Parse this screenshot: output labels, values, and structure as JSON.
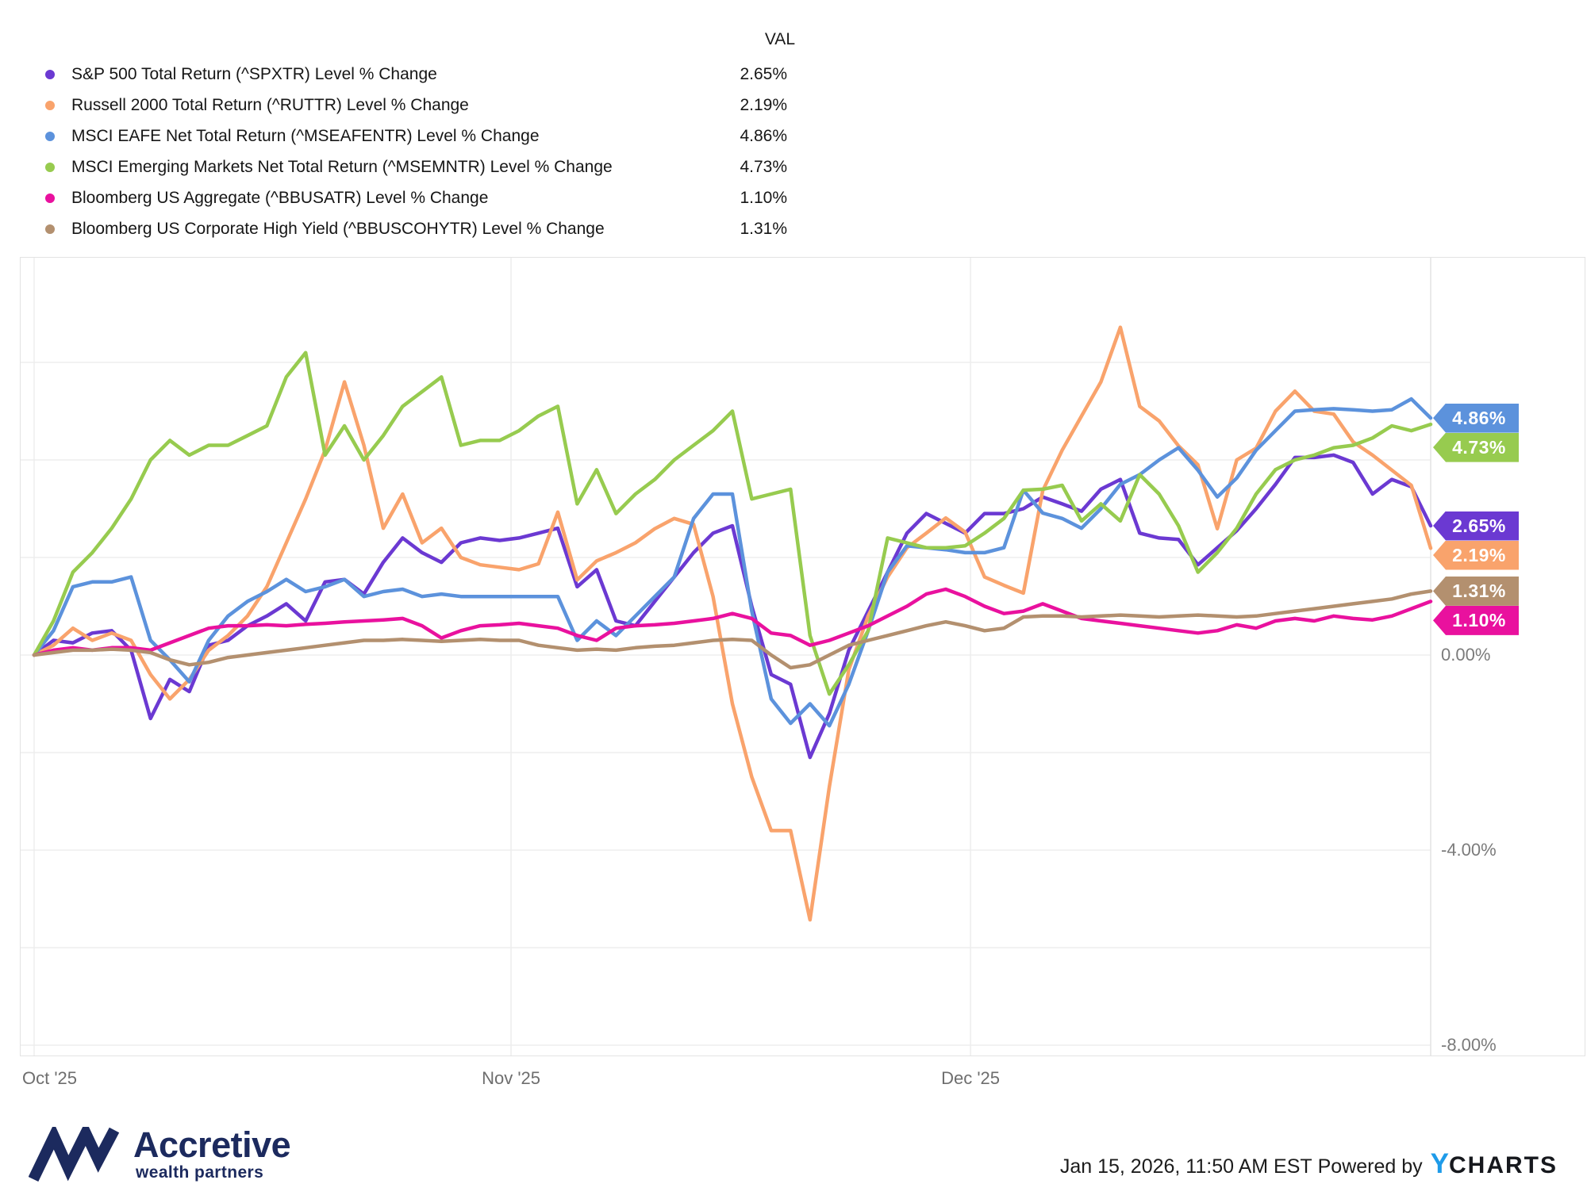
{
  "legend": {
    "val_header": "VAL",
    "items": [
      {
        "label": "S&P 500 Total Return (^SPXTR) Level % Change",
        "val": "2.65%",
        "color": "#6B39D2"
      },
      {
        "label": "Russell 2000 Total Return (^RUTTR) Level % Change",
        "val": "2.19%",
        "color": "#F9A36C"
      },
      {
        "label": "MSCI EAFE Net Total Return (^MSEAFENTR) Level % Change",
        "val": "4.86%",
        "color": "#5C92DC"
      },
      {
        "label": "MSCI Emerging Markets Net Total Return (^MSEMNTR) Level % Change",
        "val": "4.73%",
        "color": "#97CB4F"
      },
      {
        "label": "Bloomberg US Aggregate (^BBUSATR) Level % Change",
        "val": "1.10%",
        "color": "#E9119E"
      },
      {
        "label": "Bloomberg US Corporate High Yield (^BBUSCOHYTR) Level % Change",
        "val": "1.31%",
        "color": "#B3906F"
      }
    ]
  },
  "chart_data": {
    "type": "line",
    "title": "",
    "xlabel": "",
    "ylabel": "Level % Change",
    "x_range_dates": [
      "Oct 1 '25",
      "Jan 14 '26"
    ],
    "ylim": [
      -8.2,
      8.2
    ],
    "grid": true,
    "y_axis": {
      "gridline_values": [
        6,
        4,
        2,
        0,
        -2,
        -4,
        -6,
        -8
      ],
      "labels": [
        {
          "text": "0.00%",
          "value": 0
        },
        {
          "text": "-4.00%",
          "value": -4
        },
        {
          "text": "-8.00%",
          "value": -8
        }
      ]
    },
    "x_axis": {
      "ticks": [
        {
          "label": "Oct '25",
          "frac": 0.0,
          "align": "left"
        },
        {
          "label": "Nov '25",
          "frac": 0.3415,
          "align": "center"
        },
        {
          "label": "Dec '25",
          "frac": 0.6705,
          "align": "center"
        }
      ]
    },
    "series": [
      {
        "key": "spxtr",
        "name": "S&P 500 Total Return (^SPXTR) Level % Change",
        "ticker": "^SPXTR",
        "color": "#6B39D2",
        "final": 2.65,
        "tag": "2.65%",
        "values": [
          0,
          0.3,
          0.25,
          0.45,
          0.5,
          0.1,
          -1.3,
          -0.5,
          -0.75,
          0.2,
          0.3,
          0.6,
          0.8,
          1.05,
          0.7,
          1.5,
          1.55,
          1.25,
          1.9,
          2.4,
          2.1,
          1.9,
          2.3,
          2.4,
          2.35,
          2.4,
          2.5,
          2.6,
          1.4,
          1.75,
          0.7,
          0.6,
          1.1,
          1.6,
          2.1,
          2.5,
          2.65,
          1.0,
          -0.4,
          -0.6,
          -2.1,
          -1.2,
          0.1,
          0.9,
          1.7,
          2.5,
          2.9,
          2.7,
          2.5,
          2.9,
          2.9,
          3.0,
          3.24,
          3.1,
          2.95,
          3.4,
          3.6,
          2.5,
          2.4,
          2.37,
          1.85,
          2.2,
          2.55,
          3.0,
          3.5,
          4.05,
          4.05,
          4.1,
          3.95,
          3.3,
          3.6,
          3.45,
          2.65
        ]
      },
      {
        "key": "ruttr",
        "name": "Russell 2000 Total Return (^RUTTR) Level % Change",
        "ticker": "^RUTTR",
        "color": "#F9A36C",
        "final": 2.19,
        "tag": "2.19%",
        "values": [
          0,
          0.2,
          0.55,
          0.3,
          0.45,
          0.3,
          -0.4,
          -0.9,
          -0.5,
          0.1,
          0.4,
          0.8,
          1.4,
          2.3,
          3.2,
          4.2,
          5.6,
          4.3,
          2.6,
          3.3,
          2.3,
          2.6,
          2.0,
          1.85,
          1.8,
          1.75,
          1.87,
          2.93,
          1.54,
          1.93,
          2.1,
          2.3,
          2.59,
          2.8,
          2.68,
          1.2,
          -1.0,
          -2.5,
          -3.6,
          -3.6,
          -5.43,
          -2.7,
          -0.3,
          0.8,
          1.6,
          2.2,
          2.5,
          2.81,
          2.52,
          1.6,
          1.43,
          1.27,
          3.37,
          4.2,
          4.9,
          5.6,
          6.72,
          5.1,
          4.8,
          4.29,
          3.9,
          2.59,
          4.0,
          4.24,
          5.0,
          5.41,
          5.0,
          4.94,
          4.37,
          4.1,
          3.79,
          3.48,
          2.19
        ]
      },
      {
        "key": "mseafentr",
        "name": "MSCI EAFE Net Total Return (^MSEAFENTR) Level % Change",
        "ticker": "^MSEAFENTR",
        "color": "#5C92DC",
        "final": 4.86,
        "tag": "4.86%",
        "values": [
          0,
          0.5,
          1.4,
          1.5,
          1.5,
          1.6,
          0.3,
          -0.1,
          -0.55,
          0.3,
          0.8,
          1.1,
          1.3,
          1.55,
          1.3,
          1.4,
          1.55,
          1.2,
          1.3,
          1.35,
          1.2,
          1.25,
          1.2,
          1.2,
          1.2,
          1.2,
          1.2,
          1.2,
          0.3,
          0.7,
          0.4,
          0.8,
          1.2,
          1.6,
          2.8,
          3.3,
          3.3,
          0.9,
          -0.9,
          -1.4,
          -1.0,
          -1.45,
          -0.6,
          0.5,
          1.7,
          2.24,
          2.2,
          2.16,
          2.1,
          2.1,
          2.2,
          3.38,
          2.91,
          2.8,
          2.6,
          3.0,
          3.5,
          3.7,
          4.0,
          4.25,
          3.79,
          3.24,
          3.63,
          4.2,
          4.6,
          5.0,
          5.03,
          5.05,
          5.03,
          5.0,
          5.03,
          5.25,
          4.86
        ]
      },
      {
        "key": "msemntr",
        "name": "MSCI Emerging Markets Net Total Return (^MSEMNTR) Level % Change",
        "ticker": "^MSEMNTR",
        "color": "#97CB4F",
        "final": 4.73,
        "tag": "4.73%",
        "values": [
          0,
          0.7,
          1.7,
          2.1,
          2.6,
          3.2,
          4.0,
          4.4,
          4.1,
          4.3,
          4.3,
          4.5,
          4.7,
          5.7,
          6.2,
          4.1,
          4.7,
          4.0,
          4.5,
          5.1,
          5.4,
          5.7,
          4.3,
          4.4,
          4.4,
          4.6,
          4.9,
          5.1,
          3.1,
          3.8,
          2.9,
          3.3,
          3.6,
          4.0,
          4.3,
          4.6,
          5.0,
          3.2,
          3.3,
          3.4,
          0.4,
          -0.8,
          -0.2,
          0.5,
          2.4,
          2.3,
          2.2,
          2.2,
          2.24,
          2.5,
          2.8,
          3.38,
          3.4,
          3.48,
          2.75,
          3.1,
          2.75,
          3.7,
          3.3,
          2.65,
          1.7,
          2.1,
          2.6,
          3.3,
          3.8,
          4.0,
          4.1,
          4.25,
          4.3,
          4.45,
          4.7,
          4.6,
          4.73
        ]
      },
      {
        "key": "bbusatr",
        "name": "Bloomberg US Aggregate (^BBUSATR) Level % Change",
        "ticker": "^BBUSATR",
        "color": "#E9119E",
        "final": 1.1,
        "tag": "1.10%",
        "values": [
          0,
          0.1,
          0.15,
          0.1,
          0.15,
          0.15,
          0.1,
          0.25,
          0.4,
          0.55,
          0.6,
          0.6,
          0.62,
          0.6,
          0.63,
          0.65,
          0.68,
          0.7,
          0.72,
          0.75,
          0.6,
          0.35,
          0.5,
          0.6,
          0.62,
          0.65,
          0.6,
          0.55,
          0.4,
          0.3,
          0.55,
          0.6,
          0.62,
          0.65,
          0.7,
          0.75,
          0.85,
          0.75,
          0.45,
          0.4,
          0.2,
          0.3,
          0.45,
          0.6,
          0.8,
          1.0,
          1.25,
          1.35,
          1.2,
          1.0,
          0.85,
          0.9,
          1.05,
          0.9,
          0.75,
          0.7,
          0.65,
          0.6,
          0.55,
          0.5,
          0.45,
          0.5,
          0.62,
          0.55,
          0.7,
          0.75,
          0.7,
          0.8,
          0.75,
          0.72,
          0.8,
          0.95,
          1.1
        ]
      },
      {
        "key": "bbuscohytr",
        "name": "Bloomberg US Corporate High Yield (^BBUSCOHYTR) Level % Change",
        "ticker": "^BBUSCOHYTR",
        "color": "#B3906F",
        "final": 1.31,
        "tag": "1.31%",
        "values": [
          0,
          0.05,
          0.1,
          0.1,
          0.12,
          0.1,
          0.05,
          -0.1,
          -0.2,
          -0.15,
          -0.05,
          0.0,
          0.05,
          0.1,
          0.15,
          0.2,
          0.25,
          0.3,
          0.3,
          0.32,
          0.3,
          0.28,
          0.3,
          0.32,
          0.3,
          0.3,
          0.2,
          0.15,
          0.1,
          0.12,
          0.1,
          0.15,
          0.18,
          0.2,
          0.25,
          0.3,
          0.32,
          0.3,
          0.0,
          -0.26,
          -0.2,
          0.0,
          0.2,
          0.3,
          0.4,
          0.5,
          0.6,
          0.68,
          0.6,
          0.5,
          0.55,
          0.78,
          0.8,
          0.8,
          0.78,
          0.8,
          0.82,
          0.8,
          0.78,
          0.8,
          0.82,
          0.8,
          0.78,
          0.8,
          0.85,
          0.9,
          0.95,
          1.0,
          1.05,
          1.1,
          1.15,
          1.25,
          1.31
        ]
      }
    ],
    "legend_position": "top-left",
    "colors": {
      "gridline": "#ededed",
      "plot_border": "#e3e3e3",
      "axis_label": "#7b7b7b"
    }
  },
  "footer": {
    "brand_name": "Accretive",
    "brand_sub": "wealth partners",
    "brand_color": "#1c2a5e",
    "timestamp": "Jan 15, 2026, 11:50 AM EST",
    "powered_by": "Powered by",
    "logo_y": "Y",
    "logo_charts": "CHARTS",
    "ycharts_blue": "#1e9be9"
  }
}
